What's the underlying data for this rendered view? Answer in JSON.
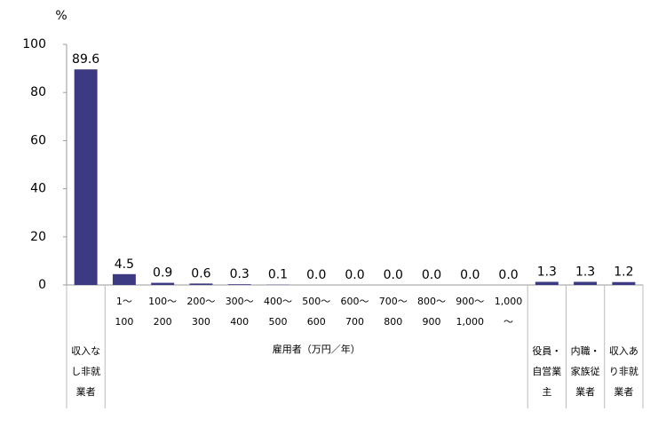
{
  "chart_data": {
    "type": "bar",
    "unit": "%",
    "categories": [
      "収入な\nし非就\n業者",
      "1～\n100",
      "100～\n200",
      "200～\n300",
      "300～\n400",
      "400～\n500",
      "500～\n600",
      "600～\n700",
      "700～\n800",
      "800～\n900",
      "900～\n1,000",
      "1,000\n～",
      "役員・\n自営業\n主",
      "内職・\n家族従\n業者",
      "収入あ\nり非就\n業者"
    ],
    "group_label": "雇用者（万円／年）",
    "values": [
      89.6,
      4.5,
      0.9,
      0.6,
      0.3,
      0.1,
      0,
      0,
      0,
      0,
      0,
      0,
      1.3,
      1.3,
      1.2
    ],
    "value_labels": [
      "89.6",
      "4.5",
      "0.9",
      "0.6",
      "0.3",
      "0.1",
      "0.0",
      "0.0",
      "0.0",
      "0.0",
      "0.0",
      "0.0",
      "1.3",
      "1.3",
      "1.2"
    ],
    "color": "#3d3a84",
    "ylim": [
      0,
      100
    ],
    "yticks": [
      0,
      20,
      40,
      60,
      80,
      100
    ]
  }
}
